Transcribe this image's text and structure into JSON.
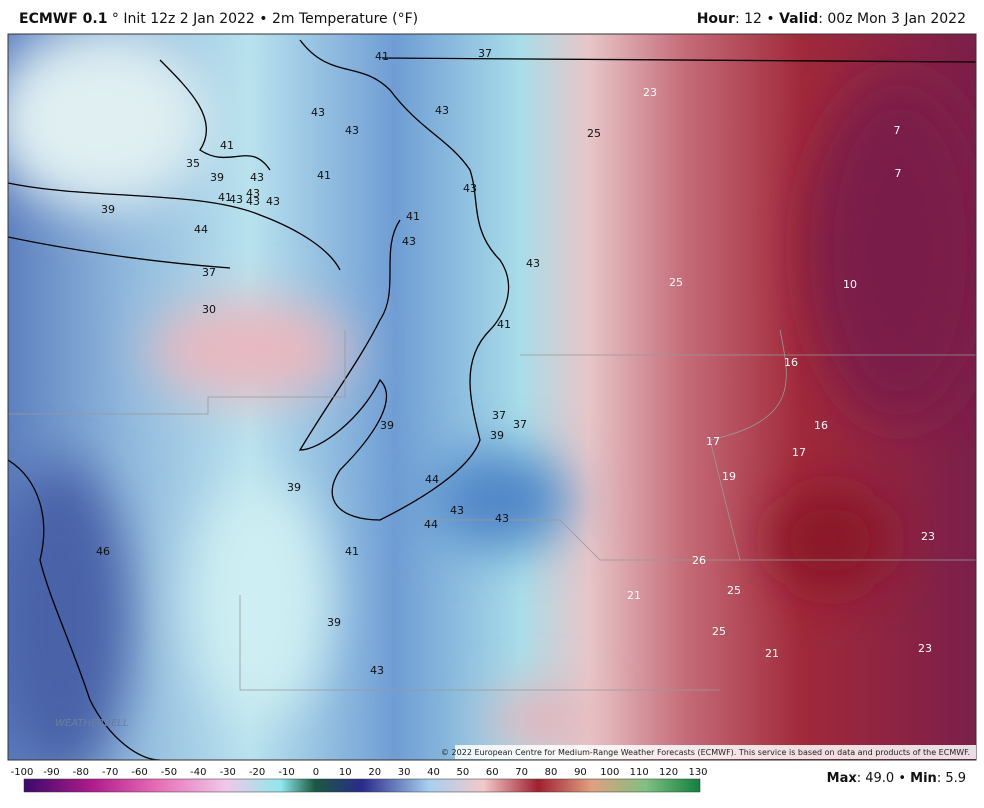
{
  "header": {
    "model": "ECMWF 0.1",
    "description": "° Init 12z 2 Jan 2022 • 2m Temperature (°F)",
    "hour_label": "Hour",
    "hour_value": ": 12 •",
    "valid_label": "Valid",
    "valid_value": ": 00z Mon 3 Jan 2022"
  },
  "map": {
    "labels": [
      41,
      37,
      23,
      43,
      43,
      43,
      25,
      41,
      7,
      35,
      39,
      43,
      41,
      7,
      43,
      41,
      43,
      43,
      43,
      43,
      39,
      41,
      44,
      43,
      43,
      37,
      25,
      10,
      30,
      41,
      16,
      37,
      37,
      39,
      39,
      16,
      17,
      17,
      19,
      44,
      39,
      43,
      43,
      44,
      23,
      46,
      41,
      26,
      25,
      21,
      39,
      25,
      21,
      23,
      43
    ],
    "copyright": "© 2022 European Centre for Medium-Range Weather Forecasts (ECMWF). This service is based on data and products of the ECMWF.",
    "logo": "WEATHERBELL"
  },
  "colorbar": {
    "ticks": [
      -100,
      -90,
      -80,
      -70,
      -60,
      -50,
      -40,
      -30,
      -20,
      -10,
      0,
      10,
      20,
      30,
      40,
      50,
      60,
      70,
      80,
      90,
      100,
      110,
      120,
      130
    ]
  },
  "footer": {
    "max_label": "Max",
    "max_value": ": 49.0 •",
    "min_label": "Min",
    "min_value": ": 5.9"
  }
}
